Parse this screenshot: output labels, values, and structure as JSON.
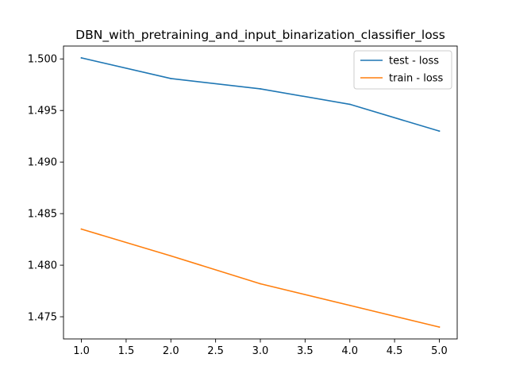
{
  "chart_data": {
    "type": "line",
    "title": "DBN_with_pretraining_and_input_binarization_classifier_loss",
    "xlabel": "",
    "ylabel": "",
    "x": [
      1.0,
      2.0,
      3.0,
      4.0,
      5.0
    ],
    "xlim": [
      0.8,
      5.2
    ],
    "ylim": [
      1.47285,
      1.50125
    ],
    "xticks": [
      1.0,
      1.5,
      2.0,
      2.5,
      3.0,
      3.5,
      4.0,
      4.5,
      5.0
    ],
    "xtick_labels": [
      "1.0",
      "1.5",
      "2.0",
      "2.5",
      "3.0",
      "3.5",
      "4.0",
      "4.5",
      "5.0"
    ],
    "yticks": [
      1.475,
      1.48,
      1.485,
      1.49,
      1.495,
      1.5
    ],
    "ytick_labels": [
      "1.475",
      "1.480",
      "1.485",
      "1.490",
      "1.495",
      "1.500"
    ],
    "grid": false,
    "legend_position": "top-right",
    "series": [
      {
        "name": "test - loss",
        "color": "#1f77b4",
        "values": [
          1.5001,
          1.4981,
          1.4971,
          1.4956,
          1.493
        ]
      },
      {
        "name": "train - loss",
        "color": "#ff7f0e",
        "values": [
          1.4835,
          1.4809,
          1.4782,
          1.4761,
          1.474
        ]
      }
    ]
  }
}
